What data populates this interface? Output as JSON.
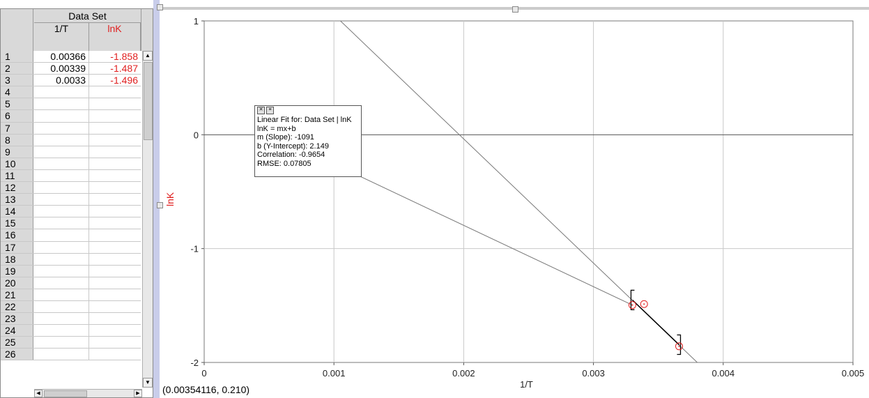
{
  "table": {
    "dataset_title": "Data Set",
    "columns": [
      "1/T",
      "lnK"
    ],
    "row_numbers": [
      "1",
      "2",
      "3",
      "4",
      "5",
      "6",
      "7",
      "8",
      "9",
      "10",
      "11",
      "12",
      "13",
      "14",
      "15",
      "16",
      "17",
      "18",
      "19",
      "20",
      "21",
      "22",
      "23",
      "24",
      "25",
      "26"
    ],
    "rows": [
      [
        "0.00366",
        "-1.858"
      ],
      [
        "0.00339",
        "-1.487"
      ],
      [
        "0.0033",
        "-1.496"
      ]
    ]
  },
  "fit_box": {
    "line1": "Linear Fit for: Data Set | lnK",
    "line2": "lnK = mx+b",
    "line3": "m (Slope): -1091",
    "line4": "b (Y-Intercept): 2.149",
    "line5": "Correlation: -0.9654",
    "line6": "RMSE: 0.07805"
  },
  "coordinate_readout": "(0.00354116, 0.210)",
  "colors": {
    "lnK": "#e02020",
    "grid": "#c8c8c8",
    "pane_divider": "#c9cdea"
  },
  "chart_data": {
    "type": "scatter",
    "xlabel": "1/T",
    "ylabel": "lnK",
    "xlim": [
      0,
      0.005
    ],
    "ylim": [
      -2,
      1
    ],
    "x_ticks": [
      0,
      0.001,
      0.002,
      0.003,
      0.004,
      0.005
    ],
    "x_tick_labels": [
      "0",
      "0.001",
      "0.002",
      "0.003",
      "0.004",
      "0.005"
    ],
    "y_ticks": [
      1,
      0,
      -1,
      -2
    ],
    "y_tick_labels": [
      "1",
      "0",
      "-1",
      "-2"
    ],
    "grid": true,
    "series": [
      {
        "name": "lnK",
        "x": [
          0.00366,
          0.00339,
          0.0033
        ],
        "y": [
          -1.858,
          -1.487,
          -1.496
        ]
      }
    ],
    "fit_line": {
      "slope": -1091,
      "intercept": 2.149,
      "x_range": [
        0.0033,
        0.00366
      ]
    },
    "reference_lines": [
      {
        "from": [
          0.00105,
          1.0
        ],
        "to": [
          0.0038,
          -2.0
        ]
      },
      {
        "from": [
          0.00108,
          -0.3
        ],
        "to": [
          0.0033,
          -1.496
        ]
      }
    ]
  }
}
